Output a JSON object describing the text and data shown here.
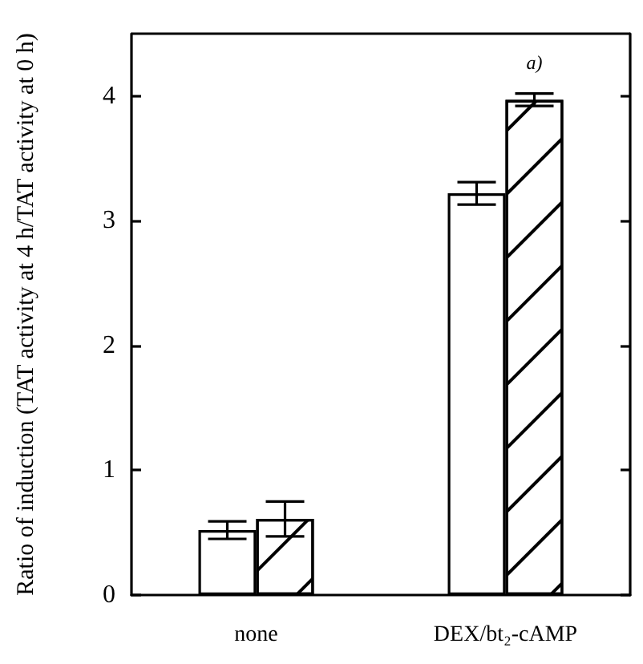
{
  "chart_data": {
    "type": "bar",
    "ylabel": "Ratio of induction (TAT activity at 4 h/TAT activity at 0 h)",
    "categories": [
      "none",
      "DEX/bt₂-cAMP"
    ],
    "series": [
      {
        "color": "#ffffff",
        "values": [
          0.52,
          3.22
        ],
        "errors": [
          0.07,
          0.09
        ]
      },
      {
        "color": "#ffffff",
        "values": [
          0.61,
          3.97
        ],
        "errors": [
          0.14,
          0.05
        ]
      }
    ],
    "annotations": [
      "a)"
    ],
    "ylim": [
      0,
      4.5
    ],
    "yticks": [
      0,
      1,
      2,
      3,
      4
    ],
    "grid": false
  }
}
